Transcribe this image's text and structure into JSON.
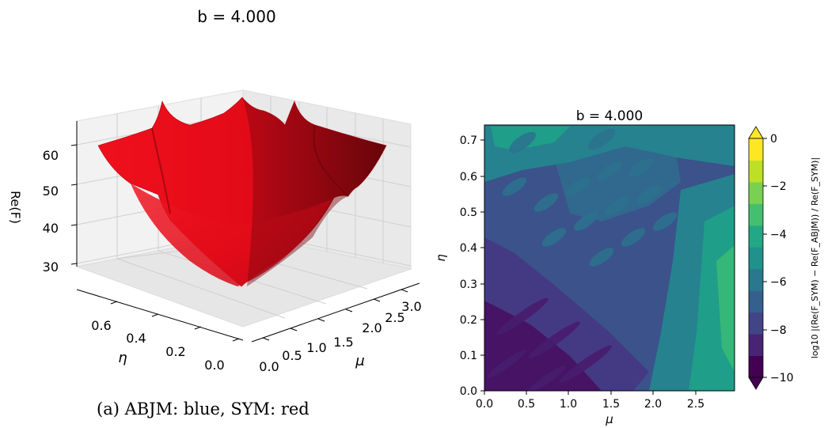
{
  "figure": {
    "caption": "(a) ABJM: blue, SYM: red"
  },
  "chart_data": [
    {
      "type": "surface3d",
      "title": "b = 4.000",
      "xlabel": "μ",
      "ylabel": "η",
      "zlabel": "Re(F)",
      "xticks": [
        "0.0",
        "0.5",
        "1.0",
        "1.5",
        "2.0",
        "2.5",
        "3.0"
      ],
      "yticks": [
        "0.0",
        "0.2",
        "0.4",
        "0.6"
      ],
      "zticks": [
        "30",
        "40",
        "50",
        "60"
      ],
      "xlim": [
        0,
        3.0
      ],
      "ylim": [
        0,
        0.75
      ],
      "zlim": [
        25,
        65
      ],
      "series": [
        {
          "name": "SYM",
          "color": "#e8101e",
          "surface_summary": {
            "min_z": 25,
            "max_z": 62,
            "shape": "bowl rising from origin toward μ=3.0, η=0.75"
          }
        }
      ]
    },
    {
      "type": "heatmap",
      "title": "b = 4.000",
      "xlabel": "μ",
      "ylabel": "η",
      "xticks": [
        "0.0",
        "0.5",
        "1.0",
        "1.5",
        "2.0",
        "2.5"
      ],
      "yticks": [
        "0.0",
        "0.1",
        "0.2",
        "0.3",
        "0.4",
        "0.5",
        "0.6",
        "0.7"
      ],
      "xlim": [
        0,
        2.95
      ],
      "ylim": [
        0,
        0.74
      ],
      "colorbar": {
        "label": "log10 |(Re(F_SYM) − Re(F_ABJM)) / Re(F_SYM)|",
        "ticks": [
          "0",
          "−2",
          "−4",
          "−6",
          "−8",
          "−10"
        ],
        "levels": [
          -11,
          -10,
          -9,
          -8,
          -7,
          -6,
          -5,
          -4,
          -3,
          -2,
          -1,
          0,
          1
        ],
        "colors": [
          "#440154",
          "#482475",
          "#414487",
          "#355f8d",
          "#2a788e",
          "#21918c",
          "#22a884",
          "#44bf70",
          "#7ad151",
          "#bddf26",
          "#fde725"
        ]
      },
      "scale": "log10",
      "grid": false
    }
  ]
}
